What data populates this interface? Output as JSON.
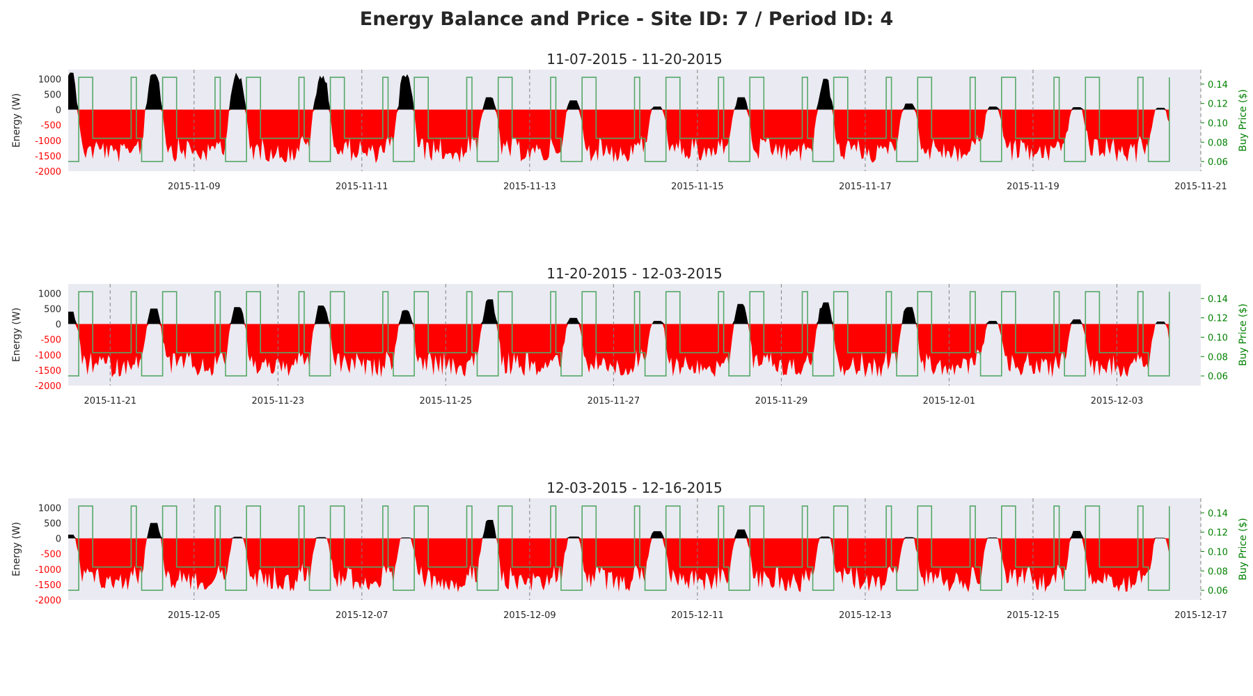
{
  "figure": {
    "title": "Energy Balance and Price - Site ID: 7 / Period ID: 4"
  },
  "colors": {
    "background": "#eaeaf2",
    "import": "#ff0000",
    "export": "#000000",
    "price": "#55a868",
    "price_axis": "#008000",
    "energy_negative_ticks": "#ff0000",
    "day_divider": "#808080"
  },
  "chart_data": [
    {
      "type": "area",
      "title": "11-07-2015 - 11-20-2015",
      "ylabel": "Energy (W)",
      "y2label": "Buy Price ($)",
      "ylim": [
        -2000,
        1300
      ],
      "y2lim": [
        0.05,
        0.155
      ],
      "yticks": [
        1000,
        500,
        0,
        -500,
        -1000,
        -1500,
        -2000
      ],
      "y2ticks": [
        "0.06",
        "0.08",
        "0.10",
        "0.12",
        "0.14"
      ],
      "x_start": "2015-11-07T12:00",
      "x_end": "2015-11-21T00:00",
      "data_end": "2015-11-20T15:00",
      "xticks": [
        "2015-11-09",
        "2015-11-11",
        "2015-11-13",
        "2015-11-15",
        "2015-11-17",
        "2015-11-19",
        "2015-11-21"
      ],
      "day_peaks": [
        1200,
        1150,
        1200,
        1100,
        1150,
        400,
        300,
        100,
        400,
        1000,
        200,
        100,
        80,
        60
      ]
    },
    {
      "type": "area",
      "title": "11-20-2015 - 12-03-2015",
      "ylabel": "Energy (W)",
      "y2label": "Buy Price ($)",
      "ylim": [
        -2000,
        1300
      ],
      "y2lim": [
        0.05,
        0.155
      ],
      "yticks": [
        1000,
        500,
        0,
        -500,
        -1000,
        -1500,
        -2000
      ],
      "y2ticks": [
        "0.06",
        "0.08",
        "0.10",
        "0.12",
        "0.14"
      ],
      "x_start": "2015-11-20T12:00",
      "x_end": "2015-12-04T00:00",
      "data_end": "2015-12-03T15:00",
      "xticks": [
        "2015-11-21",
        "2015-11-23",
        "2015-11-25",
        "2015-11-27",
        "2015-11-29",
        "2015-12-01",
        "2015-12-03"
      ],
      "day_peaks": [
        400,
        500,
        550,
        600,
        450,
        800,
        200,
        100,
        650,
        700,
        550,
        100,
        150,
        80
      ]
    },
    {
      "type": "area",
      "title": "12-03-2015 - 12-16-2015",
      "ylabel": "Energy (W)",
      "y2label": "Buy Price ($)",
      "ylim": [
        -2000,
        1300
      ],
      "y2lim": [
        0.05,
        0.155
      ],
      "yticks": [
        1000,
        500,
        0,
        -500,
        -1000,
        -1500,
        -2000
      ],
      "y2ticks": [
        "0.06",
        "0.08",
        "0.10",
        "0.12",
        "0.14"
      ],
      "x_start": "2015-12-03T12:00",
      "x_end": "2015-12-17T00:00",
      "data_end": "2015-12-16T15:00",
      "xticks": [
        "2015-12-05",
        "2015-12-07",
        "2015-12-09",
        "2015-12-11",
        "2015-12-13",
        "2015-12-15",
        "2015-12-17"
      ],
      "day_peaks": [
        120,
        500,
        50,
        40,
        30,
        600,
        60,
        230,
        290,
        60,
        40,
        30,
        240,
        20
      ]
    }
  ]
}
